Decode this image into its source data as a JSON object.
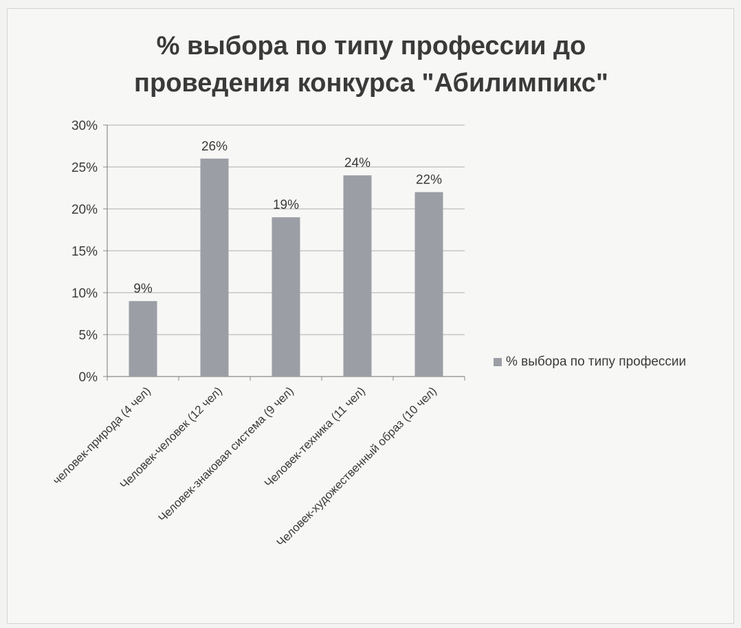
{
  "chart_data": {
    "type": "bar",
    "title": "% выбора по типу профессии до проведения конкурса \"Абилимпикс\"",
    "categories": [
      "человек-природа (4 чел)",
      "Человек-человек (12 чел)",
      "Человек-знаковая система (9 чел)",
      "Человек-техника (11 чел)",
      "Человек-художественный образ (10 чел)"
    ],
    "series": [
      {
        "name": "% выбора по типу профессии",
        "values": [
          9,
          26,
          19,
          24,
          22
        ],
        "labels": [
          "9%",
          "26%",
          "19%",
          "24%",
          "22%"
        ]
      }
    ],
    "ylim": [
      0,
      30
    ],
    "yticks": [
      {
        "value": 0,
        "label": "0%"
      },
      {
        "value": 5,
        "label": "5%"
      },
      {
        "value": 10,
        "label": "10%"
      },
      {
        "value": 15,
        "label": "15%"
      },
      {
        "value": 20,
        "label": "20%"
      },
      {
        "value": 25,
        "label": "25%"
      },
      {
        "value": 30,
        "label": "30%"
      }
    ],
    "xlabel": "",
    "ylabel": "",
    "grid": true,
    "legend_position": "right",
    "colors": {
      "bar": "#9c9ea6",
      "grid": "#bdbdbd",
      "axis": "#8a8a8a"
    }
  }
}
